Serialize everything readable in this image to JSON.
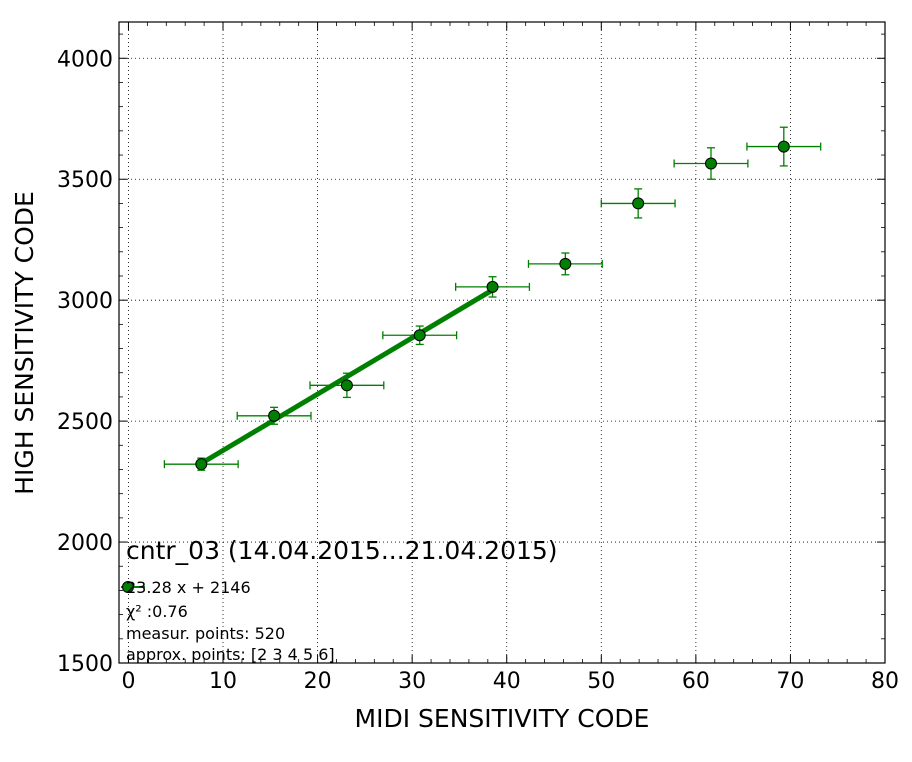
{
  "chart_data": {
    "type": "scatter",
    "xlabel": "MIDI SENSITIVITY CODE",
    "ylabel": "HIGH SENSITIVITY CODE",
    "xlim": [
      -1,
      80
    ],
    "ylim": [
      1500,
      4150
    ],
    "xticks": [
      0,
      10,
      20,
      30,
      40,
      50,
      60,
      70,
      80
    ],
    "yticks": [
      1500,
      2000,
      2500,
      3000,
      3500,
      4000
    ],
    "grid": true,
    "marker_color": "#008000",
    "series": [
      {
        "points": [
          {
            "x": 7.7,
            "y": 2322,
            "xerr": 3.9,
            "yerr": 25
          },
          {
            "x": 15.4,
            "y": 2522,
            "xerr": 3.9,
            "yerr": 35
          },
          {
            "x": 23.1,
            "y": 2648,
            "xerr": 3.9,
            "yerr": 50
          },
          {
            "x": 30.8,
            "y": 2855,
            "xerr": 3.9,
            "yerr": 38
          },
          {
            "x": 38.5,
            "y": 3055,
            "xerr": 3.9,
            "yerr": 42
          },
          {
            "x": 46.2,
            "y": 3150,
            "xerr": 3.9,
            "yerr": 45
          },
          {
            "x": 53.9,
            "y": 3400,
            "xerr": 3.9,
            "yerr": 60
          },
          {
            "x": 61.6,
            "y": 3565,
            "xerr": 3.9,
            "yerr": 65
          },
          {
            "x": 69.3,
            "y": 3635,
            "xerr": 3.9,
            "yerr": 80
          }
        ]
      }
    ],
    "fit": {
      "slope": 23.28,
      "intercept": 2146,
      "x_range": [
        7.7,
        38.5
      ],
      "color": "#008000"
    },
    "annotation": {
      "title": "cntr_03 (14.04.2015...21.04.2015)",
      "equation": "23.28 x + 2146",
      "chi2_label": "χ² :0.76",
      "points_label": "measur. points: 520",
      "approx_label": "approx. points: [2 3 4 5 6]"
    }
  }
}
